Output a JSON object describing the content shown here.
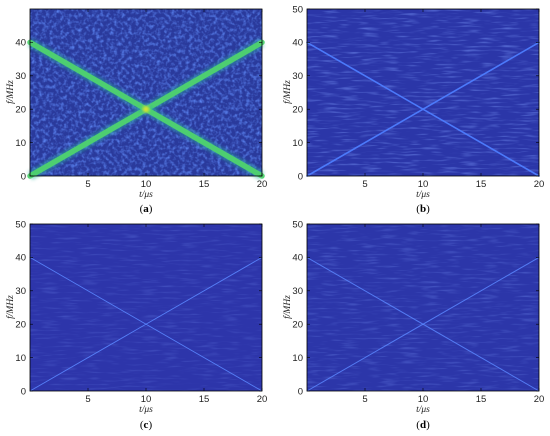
{
  "chart_data": [
    {
      "type": "heatmap",
      "caption_letter": "a",
      "xlabel": "t/μs",
      "ylabel": "f/MHz",
      "xlim": [
        0,
        20
      ],
      "ylim": [
        0,
        50
      ],
      "xticks": [
        5,
        10,
        15,
        20
      ],
      "yticks": [
        0,
        10,
        20,
        30,
        40
      ],
      "background_color": "#2a3a9c",
      "line_color": "#4fd36e",
      "series": [
        {
          "x": [
            0,
            20
          ],
          "y": [
            0,
            40
          ]
        },
        {
          "x": [
            0,
            20
          ],
          "y": [
            40,
            0
          ]
        }
      ],
      "intersection": {
        "x": 10,
        "y": 20
      }
    },
    {
      "type": "heatmap",
      "caption_letter": "b",
      "xlabel": "t/μs",
      "ylabel": "f/MHz",
      "xlim": [
        0,
        20
      ],
      "ylim": [
        0,
        50
      ],
      "xticks": [
        5,
        10,
        15,
        20
      ],
      "yticks": [
        0,
        10,
        20,
        30,
        40,
        50
      ],
      "background_color": "#2b36a8",
      "line_color": "#4d7dff",
      "series": [
        {
          "x": [
            0,
            20
          ],
          "y": [
            0,
            40
          ]
        },
        {
          "x": [
            0,
            20
          ],
          "y": [
            40,
            0
          ]
        }
      ],
      "intersection": {
        "x": 10,
        "y": 20
      }
    },
    {
      "type": "heatmap",
      "caption_letter": "c",
      "xlabel": "t/μs",
      "ylabel": "f/MHz",
      "xlim": [
        0,
        20
      ],
      "ylim": [
        0,
        50
      ],
      "xticks": [
        5,
        10,
        15,
        20
      ],
      "yticks": [
        0,
        10,
        20,
        30,
        40,
        50
      ],
      "background_color": "#2d35aa",
      "line_color": "#5a86ff",
      "series": [
        {
          "x": [
            0,
            20
          ],
          "y": [
            0,
            40
          ]
        },
        {
          "x": [
            0,
            20
          ],
          "y": [
            40,
            0
          ]
        }
      ],
      "intersection": {
        "x": 10,
        "y": 20
      }
    },
    {
      "type": "heatmap",
      "caption_letter": "d",
      "xlabel": "t/μs",
      "ylabel": "f/MHz",
      "xlim": [
        0,
        20
      ],
      "ylim": [
        0,
        50
      ],
      "xticks": [
        5,
        10,
        15,
        20
      ],
      "yticks": [
        0,
        10,
        20,
        30,
        40,
        50
      ],
      "background_color": "#2c36a9",
      "line_color": "#5a86ff",
      "series": [
        {
          "x": [
            0,
            20
          ],
          "y": [
            0,
            40
          ]
        },
        {
          "x": [
            0,
            20
          ],
          "y": [
            40,
            0
          ]
        }
      ],
      "intersection": {
        "x": 10,
        "y": 20
      }
    }
  ]
}
